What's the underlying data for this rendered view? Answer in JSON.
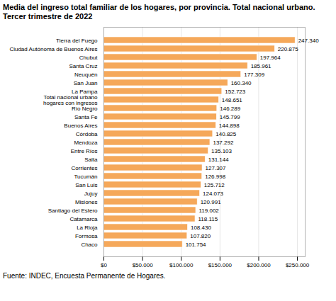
{
  "chart_data": {
    "type": "bar",
    "orientation": "horizontal",
    "title": "Media del ingreso total familiar de los hogares, por provincia. Total nacional urbano.",
    "subtitle": "Tercer trimestre de 2022",
    "caption": "Fuente: INDEC, Encuesta Permanente de Hogares.",
    "categories": [
      "Tierra del Fuego",
      "Ciudad Autónoma de Buenos Aires",
      "Chubut",
      "Santa Cruz",
      "Neuquén",
      "San Juan",
      "La Pampa",
      "Total nacional urbano\nhogares con ingresos",
      "Río Negro",
      "Santa Fe",
      "Buenos Aires",
      "Córdoba",
      "Mendoza",
      "Entre Ríos",
      "Salta",
      "Corrientes",
      "Tucumán",
      "San Luis",
      "Jujuy",
      "Misiones",
      "Santiago del Estero",
      "Catamarca",
      "La Rioja",
      "Formosa",
      "Chaco"
    ],
    "values": [
      247340,
      220875,
      197964,
      185961,
      177309,
      160340,
      152723,
      148651,
      146289,
      145799,
      144898,
      140825,
      137292,
      135103,
      131144,
      127307,
      126998,
      125712,
      124073,
      120991,
      119002,
      118115,
      108430,
      107820,
      101754
    ],
    "value_labels": [
      "247.340",
      "220.875",
      "197.964",
      "185.961",
      "177.309",
      "160.340",
      "152.723",
      "148.651",
      "146.289",
      "145.799",
      "144.898",
      "140.825",
      "137.292",
      "135.103",
      "131.144",
      "127.307",
      "126.998",
      "125.712",
      "124.073",
      "120.991",
      "119.002",
      "118.115",
      "108.430",
      "107.820",
      "101.754"
    ],
    "data_labels": true,
    "color": "#F5A85A",
    "xlim": [
      0,
      260000
    ],
    "xticks": [
      {
        "value": 0,
        "label": "$0"
      },
      {
        "value": 50000,
        "label": "$50.000"
      },
      {
        "value": 100000,
        "label": "$100.000"
      },
      {
        "value": 150000,
        "label": "$150.000"
      },
      {
        "value": 200000,
        "label": "$200.000"
      },
      {
        "value": 250000,
        "label": "$250.000"
      }
    ],
    "grid": true
  }
}
